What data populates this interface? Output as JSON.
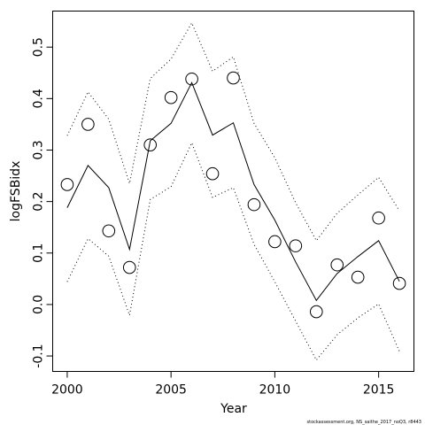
{
  "chart_data": {
    "type": "line",
    "title": "",
    "xlabel": "Year",
    "ylabel": "logFSBidx",
    "xlim": [
      1999.3,
      2016.7
    ],
    "ylim": [
      -0.13,
      0.57
    ],
    "x_ticks": [
      2000,
      2005,
      2010,
      2015
    ],
    "y_ticks": [
      -0.1,
      0.0,
      0.1,
      0.2,
      0.3,
      0.4,
      0.5
    ],
    "y_tick_labels": [
      "-0.1",
      "0.0",
      "0.1",
      "0.2",
      "0.3",
      "0.4",
      "0.5"
    ],
    "grid": false,
    "legend": "none",
    "credit_text": "stockassessment.org, NS_saithe_2017_noQ3, r8443",
    "x": [
      2000,
      2001,
      2002,
      2003,
      2004,
      2005,
      2006,
      2007,
      2008,
      2009,
      2010,
      2011,
      2012,
      2013,
      2014,
      2015,
      2016
    ],
    "series": [
      {
        "style": "points",
        "values": [
          0.233,
          0.35,
          0.143,
          0.072,
          0.31,
          0.402,
          0.438,
          0.254,
          0.44,
          0.194,
          0.122,
          0.114,
          -0.014,
          0.077,
          0.053,
          0.168,
          0.041
        ]
      },
      {
        "style": "solid",
        "values": [
          0.188,
          0.27,
          0.227,
          0.107,
          0.318,
          0.352,
          0.431,
          0.329,
          0.353,
          0.233,
          0.164,
          0.083,
          0.008,
          0.06,
          0.093,
          0.124,
          0.045
        ]
      },
      {
        "style": "dotted",
        "values": [
          0.328,
          0.413,
          0.36,
          0.235,
          0.439,
          0.477,
          0.547,
          0.453,
          0.481,
          0.352,
          0.285,
          0.198,
          0.124,
          0.177,
          0.213,
          0.247,
          0.182
        ]
      },
      {
        "style": "dotted",
        "values": [
          0.044,
          0.128,
          0.094,
          -0.021,
          0.204,
          0.229,
          0.314,
          0.208,
          0.227,
          0.117,
          0.044,
          -0.032,
          -0.108,
          -0.059,
          -0.026,
          0.001,
          -0.091
        ]
      }
    ]
  }
}
